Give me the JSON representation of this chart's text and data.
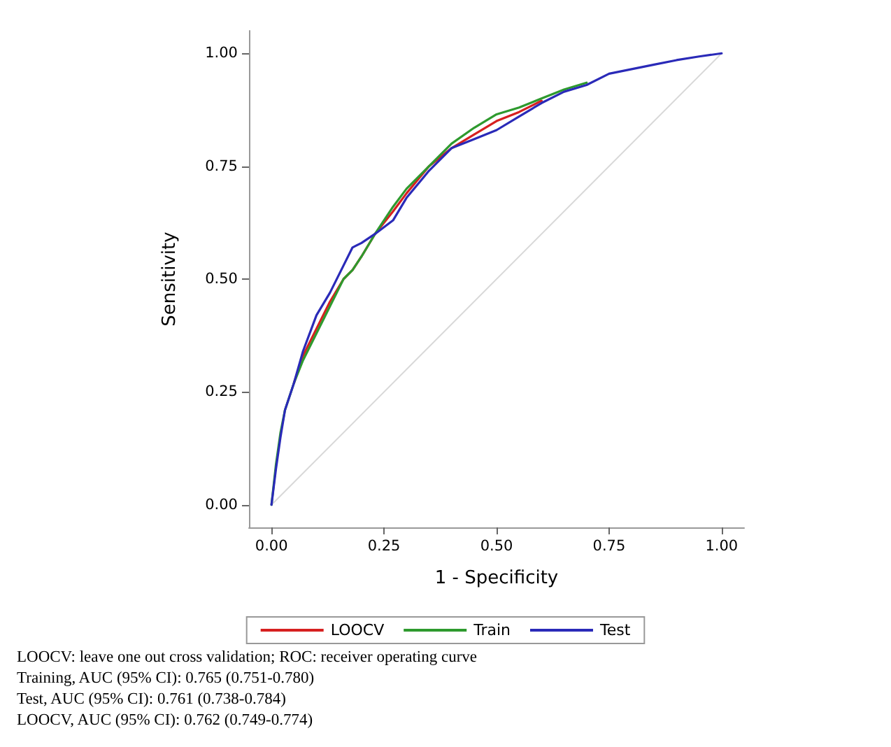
{
  "chart_data": {
    "type": "line",
    "xlabel": "1 - Specificity",
    "ylabel": "Sensitivity",
    "xlim": [
      -0.05,
      1.05
    ],
    "xticks": [
      {
        "value": 0,
        "label": "0.00"
      },
      {
        "value": 0.25,
        "label": "0.25"
      },
      {
        "value": 0.5,
        "label": "0.50"
      },
      {
        "value": 0.75,
        "label": "0.75"
      },
      {
        "value": 1,
        "label": "1.00"
      }
    ],
    "ylim": [
      -0.05,
      1.05
    ],
    "yticks": [
      {
        "value": 0,
        "label": "0.00"
      },
      {
        "value": 0.25,
        "label": "0.25"
      },
      {
        "value": 0.5,
        "label": "0.50"
      },
      {
        "value": 0.75,
        "label": "0.75"
      },
      {
        "value": 1,
        "label": "1.00"
      }
    ],
    "grid": false,
    "legend": "bottom",
    "marker": "none",
    "line_style": "solid",
    "series": [
      {
        "color": "#d8d8d8",
        "x": [
          0,
          1
        ],
        "values": [
          0,
          1
        ]
      },
      {
        "name": "LOOCV",
        "color": "#d62020",
        "x": [
          0.05,
          0.07,
          0.1,
          0.13,
          0.16,
          0.18,
          0.2,
          0.23,
          0.27,
          0.3,
          0.35,
          0.4,
          0.45,
          0.5,
          0.55,
          0.6
        ],
        "values": [
          0.27,
          0.33,
          0.39,
          0.45,
          0.5,
          0.52,
          0.55,
          0.6,
          0.65,
          0.69,
          0.75,
          0.79,
          0.82,
          0.85,
          0.87,
          0.895
        ]
      },
      {
        "name": "Train",
        "color": "#2e9a2e",
        "x": [
          0,
          0.01,
          0.02,
          0.03,
          0.05,
          0.07,
          0.1,
          0.13,
          0.16,
          0.18,
          0.2,
          0.23,
          0.27,
          0.3,
          0.35,
          0.4,
          0.45,
          0.5,
          0.55,
          0.6,
          0.65,
          0.7
        ],
        "values": [
          0,
          0.09,
          0.16,
          0.21,
          0.27,
          0.32,
          0.38,
          0.44,
          0.5,
          0.52,
          0.55,
          0.6,
          0.66,
          0.7,
          0.75,
          0.8,
          0.835,
          0.865,
          0.88,
          0.9,
          0.92,
          0.935
        ]
      },
      {
        "name": "Test",
        "color": "#2a2ab8",
        "x": [
          0,
          0.01,
          0.02,
          0.03,
          0.05,
          0.07,
          0.1,
          0.13,
          0.16,
          0.18,
          0.2,
          0.23,
          0.27,
          0.3,
          0.35,
          0.4,
          0.45,
          0.5,
          0.55,
          0.6,
          0.65,
          0.7,
          0.75,
          0.8,
          0.85,
          0.9,
          0.95,
          1
        ],
        "values": [
          0,
          0.08,
          0.15,
          0.21,
          0.27,
          0.34,
          0.42,
          0.47,
          0.53,
          0.57,
          0.58,
          0.6,
          0.63,
          0.68,
          0.74,
          0.79,
          0.81,
          0.83,
          0.86,
          0.89,
          0.915,
          0.93,
          0.955,
          0.965,
          0.975,
          0.985,
          0.993,
          1
        ]
      }
    ],
    "annotations": [
      "LOOCV: leave one out cross validation; ROC: receiver operating curve",
      "Training, AUC (95% CI): 0.765 (0.751-0.780)",
      "Test, AUC (95% CI): 0.761 (0.738-0.784)",
      "LOOCV, AUC (95% CI): 0.762 (0.749-0.774)"
    ]
  }
}
